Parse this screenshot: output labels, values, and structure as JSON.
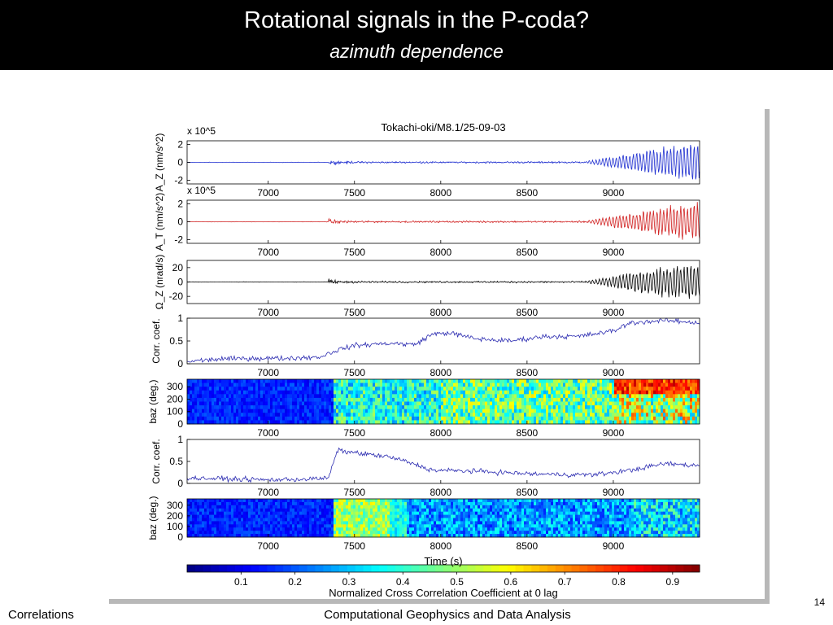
{
  "slide": {
    "title": "Rotational signals in the P-coda?",
    "subtitle": "azimuth dependence",
    "footer_left": "Correlations",
    "footer_center": "Computational Geophysics and Data Analysis",
    "page_number": "14"
  },
  "chart_data": {
    "title": "Tokachi-oki/M8.1/25-09-03",
    "xlabel": "Time (s)",
    "xlim": [
      6530,
      9500
    ],
    "xticks": [
      7000,
      7500,
      8000,
      8500,
      9000
    ],
    "panels": [
      {
        "type": "line",
        "ylabel": "A_Z (nm/s^2)",
        "exponent": "x 10^5",
        "color": "#1f2fd0",
        "ylim": [
          -2.4,
          2.4
        ],
        "yticks": [
          "2",
          "0",
          "-2"
        ],
        "yvals": [
          2,
          0,
          -2
        ],
        "onset": 7350
      },
      {
        "type": "line",
        "ylabel": "A_T (nm/s^2)",
        "exponent": "x 10^5",
        "color": "#d02020",
        "ylim": [
          -2.4,
          2.4
        ],
        "yticks": [
          "2",
          "0",
          "-2"
        ],
        "yvals": [
          2,
          0,
          -2
        ],
        "onset": 7350
      },
      {
        "type": "line",
        "ylabel": "Ω_Z (nrad/s)",
        "color": "#000000",
        "ylim": [
          -30,
          30
        ],
        "yticks": [
          "20",
          "0",
          "-20"
        ],
        "yvals": [
          20,
          0,
          -20
        ],
        "onset": 7350
      },
      {
        "type": "line",
        "ylabel": "Corr. coef.",
        "color": "#2a2ab0",
        "ylim": [
          0,
          1
        ],
        "yticks": [
          "1",
          "0.5",
          "0"
        ],
        "yvals": [
          1,
          0.5,
          0
        ]
      },
      {
        "type": "heatmap",
        "ylabel": "baz (deg.)",
        "ylim": [
          0,
          360
        ],
        "yticks": [
          "0",
          "100",
          "200",
          "300"
        ],
        "yvals": [
          0,
          100,
          200,
          300
        ]
      },
      {
        "type": "line",
        "ylabel": "Corr. coef.",
        "color": "#2a2ab0",
        "ylim": [
          0,
          1
        ],
        "yticks": [
          "1",
          "0.5",
          "0"
        ],
        "yvals": [
          1,
          0.5,
          0
        ]
      },
      {
        "type": "heatmap",
        "ylabel": "baz (deg.)",
        "ylim": [
          0,
          360
        ],
        "yticks": [
          "0",
          "100",
          "200",
          "300"
        ],
        "yvals": [
          0,
          100,
          200,
          300
        ]
      }
    ],
    "corr_trace_1": [
      [
        6530,
        0.05
      ],
      [
        6700,
        0.1
      ],
      [
        6900,
        0.12
      ],
      [
        7100,
        0.12
      ],
      [
        7300,
        0.15
      ],
      [
        7400,
        0.3
      ],
      [
        7500,
        0.4
      ],
      [
        7700,
        0.45
      ],
      [
        7850,
        0.42
      ],
      [
        7950,
        0.65
      ],
      [
        8050,
        0.68
      ],
      [
        8200,
        0.55
      ],
      [
        8400,
        0.5
      ],
      [
        8600,
        0.6
      ],
      [
        8800,
        0.6
      ],
      [
        9000,
        0.72
      ],
      [
        9100,
        0.9
      ],
      [
        9300,
        0.95
      ],
      [
        9500,
        0.9
      ]
    ],
    "corr_trace_2": [
      [
        6530,
        0.12
      ],
      [
        6800,
        0.1
      ],
      [
        7000,
        0.08
      ],
      [
        7250,
        0.1
      ],
      [
        7350,
        0.12
      ],
      [
        7400,
        0.75
      ],
      [
        7500,
        0.7
      ],
      [
        7700,
        0.6
      ],
      [
        7800,
        0.5
      ],
      [
        7950,
        0.3
      ],
      [
        8200,
        0.28
      ],
      [
        8500,
        0.22
      ],
      [
        8700,
        0.2
      ],
      [
        8900,
        0.2
      ],
      [
        9100,
        0.3
      ],
      [
        9300,
        0.45
      ],
      [
        9500,
        0.4
      ]
    ],
    "colorbar": {
      "label": "Normalized Cross Correlation Coefficient at 0 lag",
      "ticks": [
        "0.1",
        "0.2",
        "0.3",
        "0.4",
        "0.5",
        "0.6",
        "0.7",
        "0.8",
        "0.9"
      ],
      "tickvals": [
        0.1,
        0.2,
        0.3,
        0.4,
        0.5,
        0.6,
        0.7,
        0.8,
        0.9
      ],
      "range": [
        0,
        0.95
      ],
      "colormap": "jet"
    }
  }
}
